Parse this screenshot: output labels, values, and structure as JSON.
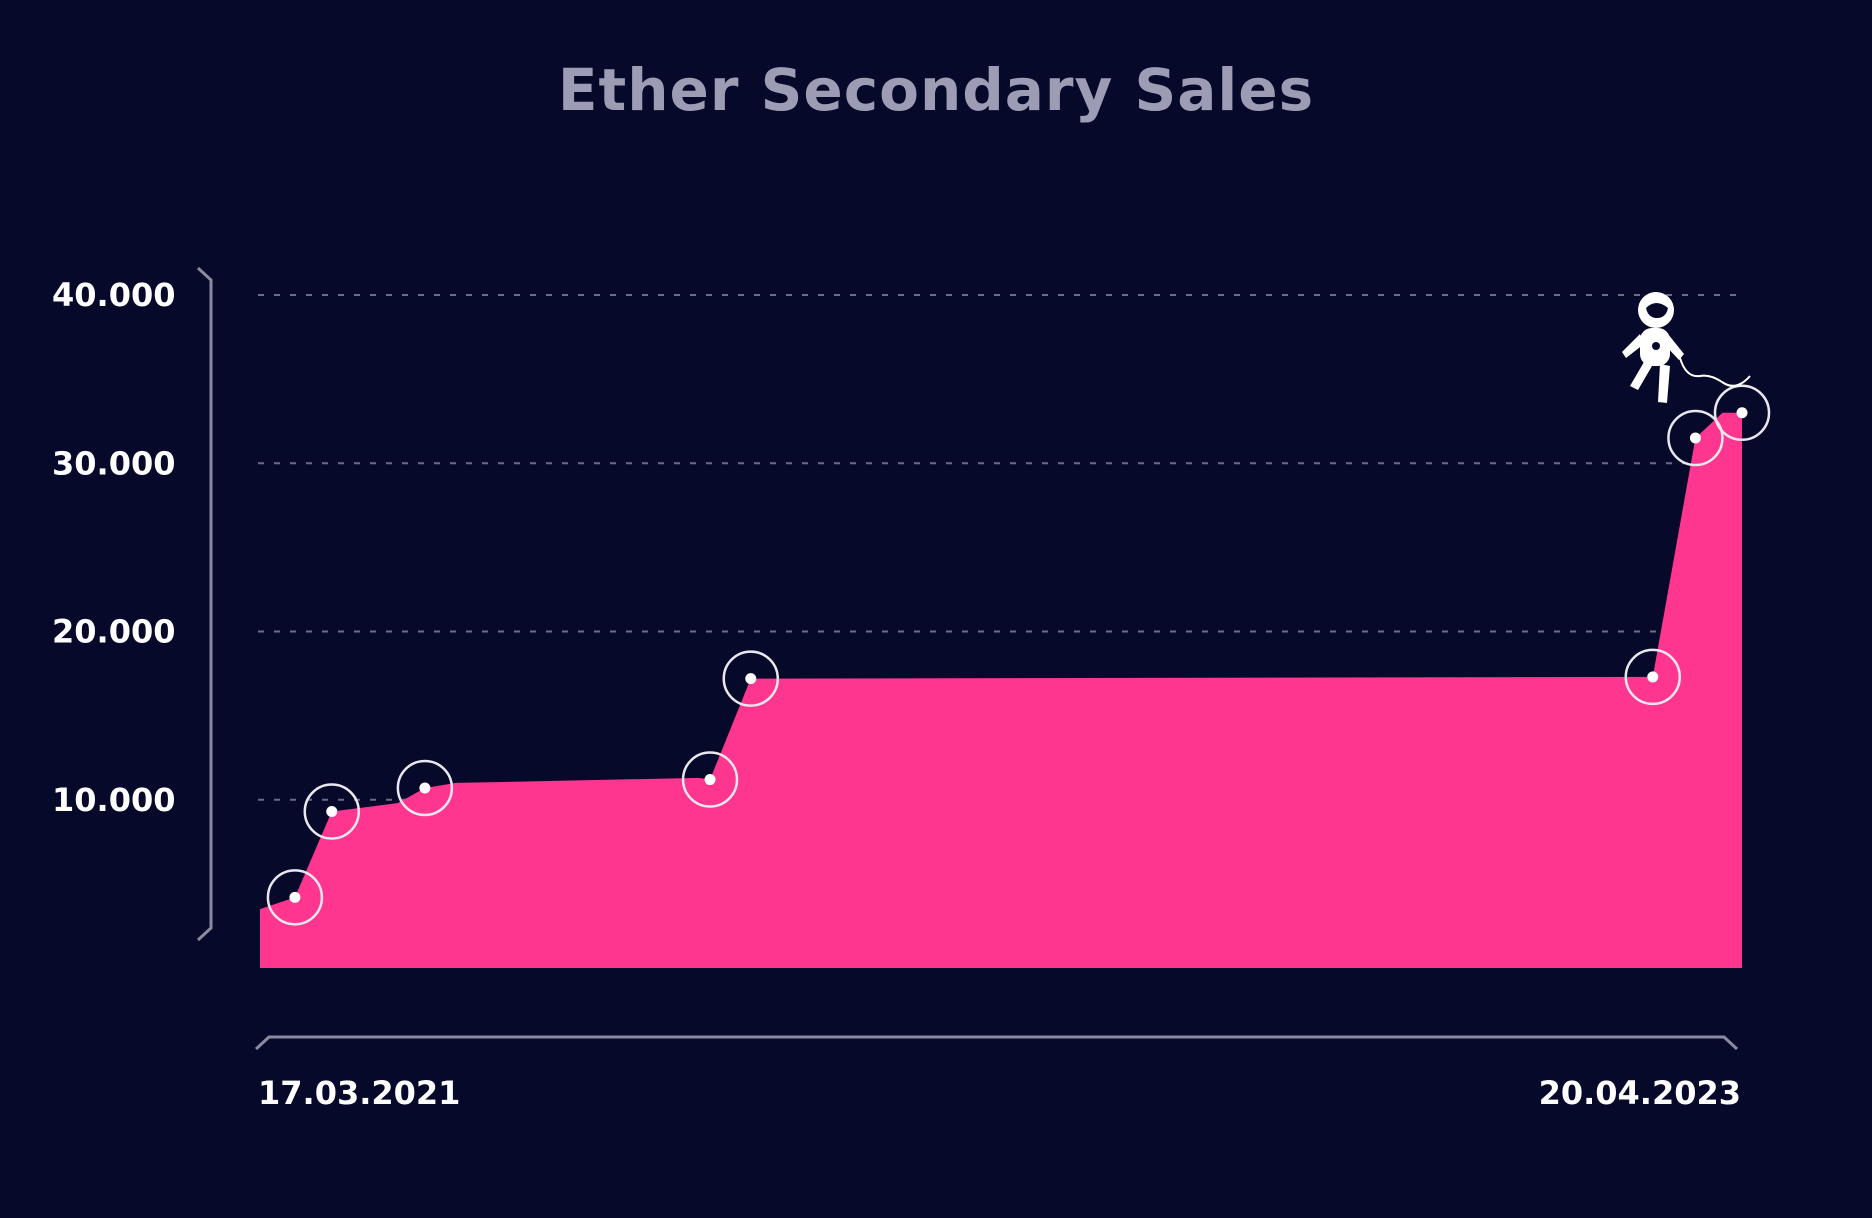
{
  "chart_data": {
    "type": "area",
    "title": "Ether Secondary Sales",
    "xlabel": "",
    "ylabel": "",
    "ylim": [
      0,
      40000
    ],
    "y_ticks": [
      {
        "value": 10000,
        "label": "10.000"
      },
      {
        "value": 20000,
        "label": "20.000"
      },
      {
        "value": 30000,
        "label": "30.000"
      },
      {
        "value": 40000,
        "label": "40.000"
      }
    ],
    "x_start_label": "17.03.2021",
    "x_end_label": "20.04.2023",
    "grid": true,
    "colors": {
      "background": "#07092a",
      "area": "#ff3690",
      "grid": "#6b6d85",
      "axis": "#8a8ba0",
      "title": "#9c9db4"
    },
    "markers_icon": "astronaut-icon",
    "series": [
      {
        "values": [
          {
            "x": "17.03.2021",
            "y": 3500,
            "marked": false
          },
          {
            "x": "04.04.2021",
            "y": 4200,
            "marked": true
          },
          {
            "x": "23.04.2021",
            "y": 9300,
            "marked": true
          },
          {
            "x": "27.05.2021",
            "y": 9800,
            "marked": false
          },
          {
            "x": "10.06.2021",
            "y": 10700,
            "marked": true
          },
          {
            "x": "26.06.2021",
            "y": 11000,
            "marked": false
          },
          {
            "x": "29.10.2021",
            "y": 11300,
            "marked": false
          },
          {
            "x": "04.11.2021",
            "y": 11200,
            "marked": true
          },
          {
            "x": "25.11.2021",
            "y": 17200,
            "marked": true
          },
          {
            "x": "05.03.2023",
            "y": 17300,
            "marked": true
          },
          {
            "x": "27.03.2023",
            "y": 31500,
            "marked": true
          },
          {
            "x": "10.04.2023",
            "y": 33000,
            "marked": false
          },
          {
            "x": "20.04.2023",
            "y": 33000,
            "marked": true
          }
        ]
      }
    ]
  }
}
